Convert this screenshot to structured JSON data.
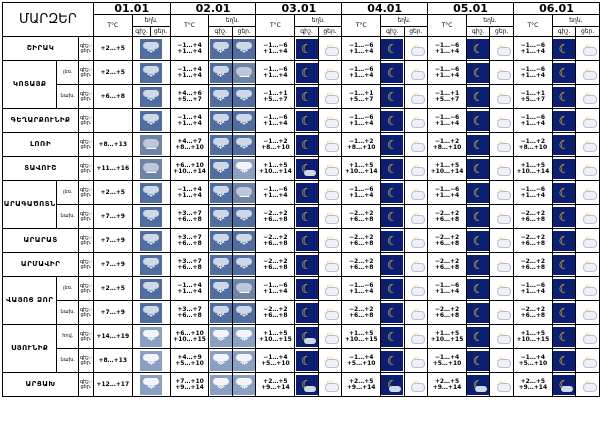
{
  "title": "ՄԱՐԶԵՐ",
  "dates": [
    "01.01",
    "02.01",
    "03.01",
    "04.01",
    "05.01",
    "06.01"
  ],
  "header": {
    "temp_label": "T°C",
    "weather_label": "եղն.",
    "day_label": "ցեր.",
    "night_label": "գիշ."
  },
  "label_dn": "գիշ.-",
  "label_day": "ցեր.",
  "regions": [
    {
      "name": "ՇԻՐԱԿ",
      "sub": "",
      "night": [
        "",
        "−1…+4",
        "−1…−6",
        "−1…−6",
        "−1…−6",
        "−1…−6"
      ],
      "day": [
        "+2…+5",
        "+1…+4",
        "+1…+4",
        "+1…+4",
        "+1…+4",
        "+1…+4"
      ],
      "icons": [
        [
          "snow-cloud"
        ],
        [
          "snow-cloud",
          "snow-cloud"
        ],
        [
          "moon",
          "sun-cloud"
        ],
        [
          "moon",
          "sun-cloud"
        ],
        [
          "moon",
          "sun-cloud"
        ],
        [
          "moon",
          "sun-cloud"
        ]
      ]
    },
    {
      "name": "ԿՈՏԱՅՔ",
      "sub": "լեռ.",
      "night": [
        "",
        "−1…+4",
        "−1…−6",
        "−1…−6",
        "−1…−6",
        "−1…−6"
      ],
      "day": [
        "+2…+5",
        "+1…+4",
        "+1…+4",
        "+1…+4",
        "+1…+4",
        "+1…+4"
      ],
      "icons": [
        [
          "snow-cloud"
        ],
        [
          "snow-cloud",
          "overcast"
        ],
        [
          "moon",
          "sun-cloud"
        ],
        [
          "moon",
          "sun-cloud"
        ],
        [
          "moon",
          "sun-cloud"
        ],
        [
          "moon",
          "sun-cloud"
        ]
      ]
    },
    {
      "name": "",
      "sub": "նախ.",
      "night": [
        "",
        "+4…+6",
        "−1…+1",
        "−1…+1",
        "−1…+1",
        "−1…+1"
      ],
      "day": [
        "+6…+8",
        "+5…+7",
        "+5…+7",
        "+5…+7",
        "+5…+7",
        "+5…+7"
      ],
      "icons": [
        [
          "snow-cloud"
        ],
        [
          "snow-cloud",
          "snow-cloud"
        ],
        [
          "moon",
          "sun-cloud"
        ],
        [
          "moon",
          "sun-cloud"
        ],
        [
          "moon",
          "sun-cloud"
        ],
        [
          "moon",
          "sun-cloud"
        ]
      ]
    },
    {
      "name": "ԳԵՂԱՐՔՈՒՆԻՔ",
      "sub": "",
      "night": [
        "",
        "−1…+4",
        "−1…−6",
        "−1…−6",
        "−1…−6",
        "−1…−6"
      ],
      "day": [
        "",
        "+1…+4",
        "+1…+4",
        "+1…+4",
        "+1…+4",
        "+1…+4"
      ],
      "icons": [
        [
          "snow-cloud"
        ],
        [
          "snow-cloud",
          "snow-cloud"
        ],
        [
          "moon",
          "sun-cloud"
        ],
        [
          "moon",
          "sun-cloud"
        ],
        [
          "moon",
          "sun-cloud"
        ],
        [
          "moon",
          "sun-cloud"
        ]
      ]
    },
    {
      "name": "ԼՈՌԻ",
      "sub": "",
      "night": [
        "",
        "+4…+7",
        "−1…+2",
        "−1…+2",
        "−1…+2",
        "−1…+2"
      ],
      "day": [
        "+8…+13",
        "+8…+10",
        "+8…+10",
        "+8…+10",
        "+8…+10",
        "+8…+10"
      ],
      "icons": [
        [
          "overcast"
        ],
        [
          "snow-cloud",
          "snow-cloud"
        ],
        [
          "moon",
          "sun-cloud"
        ],
        [
          "moon",
          "sun-cloud"
        ],
        [
          "moon",
          "sun-cloud"
        ],
        [
          "moon",
          "sun-cloud"
        ]
      ]
    },
    {
      "name": "ՏԱՎՈՒՇ",
      "sub": "",
      "night": [
        "",
        "+6…+10",
        "+1…+5",
        "+1…+5",
        "+1…+5",
        "+1…+5"
      ],
      "day": [
        "+11…+16",
        "+10…+14",
        "+10…+14",
        "+10…+14",
        "+10…+14",
        "+10…+14"
      ],
      "icons": [
        [
          "overcast"
        ],
        [
          "snow-cloud",
          "snow-light"
        ],
        [
          "night-cloud",
          "sun-cloud"
        ],
        [
          "moon",
          "sun-cloud"
        ],
        [
          "moon",
          "sun-cloud"
        ],
        [
          "moon",
          "sun-cloud"
        ]
      ]
    },
    {
      "name": "ԱՐԱԳԱԾՈՏՆ",
      "sub": "լեռ.",
      "night": [
        "",
        "−1…+4",
        "−1…−6",
        "−1…−6",
        "−1…−6",
        "−1…−6"
      ],
      "day": [
        "+2…+5",
        "+1…+4",
        "+1…+4",
        "+1…+4",
        "+1…+4",
        "+1…+4"
      ],
      "icons": [
        [
          "snow-cloud"
        ],
        [
          "snow-cloud",
          "overcast"
        ],
        [
          "moon",
          "sun-cloud"
        ],
        [
          "moon",
          "sun-cloud"
        ],
        [
          "moon",
          "sun-cloud"
        ],
        [
          "moon",
          "sun-cloud"
        ]
      ]
    },
    {
      "name": "",
      "sub": "նախ.",
      "night": [
        "",
        "+3…+7",
        "−2…+2",
        "−2…+2",
        "−2…+2",
        "−2…+2"
      ],
      "day": [
        "+7…+9",
        "+6…+8",
        "+6…+8",
        "+6…+8",
        "+6…+8",
        "+6…+8"
      ],
      "icons": [
        [
          "snow-cloud"
        ],
        [
          "snow-cloud",
          "snow-cloud"
        ],
        [
          "moon",
          "sun-cloud"
        ],
        [
          "moon",
          "sun-cloud"
        ],
        [
          "moon",
          "sun-cloud"
        ],
        [
          "moon",
          "sun-cloud"
        ]
      ]
    },
    {
      "name": "ԱՐԱՐԱՏ",
      "sub": "",
      "night": [
        "",
        "+3…+7",
        "−2…+2",
        "−2…+2",
        "−2…+2",
        "−2…+2"
      ],
      "day": [
        "+7…+9",
        "+6…+8",
        "+6…+8",
        "+6…+8",
        "+6…+8",
        "+6…+8"
      ],
      "icons": [
        [
          "snow-cloud"
        ],
        [
          "snow-cloud",
          "snow-cloud"
        ],
        [
          "moon",
          "sun-cloud"
        ],
        [
          "moon",
          "sun-cloud"
        ],
        [
          "moon",
          "sun-cloud"
        ],
        [
          "moon",
          "sun-cloud"
        ]
      ]
    },
    {
      "name": "ԱՐՄԱՎԻՐ",
      "sub": "",
      "night": [
        "",
        "+3…+7",
        "−2…+2",
        "−2…+2",
        "−2…+2",
        "−2…+2"
      ],
      "day": [
        "+7…+9",
        "+6…+8",
        "+6…+8",
        "+6…+8",
        "+6…+8",
        "+6…+8"
      ],
      "icons": [
        [
          "snow-cloud"
        ],
        [
          "snow-cloud",
          "snow-cloud"
        ],
        [
          "moon",
          "sun-cloud"
        ],
        [
          "moon",
          "sun-cloud"
        ],
        [
          "moon",
          "sun-cloud"
        ],
        [
          "moon",
          "sun-cloud"
        ]
      ]
    },
    {
      "name": "ՎԱՅՈՑ ՁՈՐ",
      "sub": "լեռ.",
      "night": [
        "",
        "−1…+4",
        "−1…−6",
        "−1…−6",
        "−1…−6",
        "−1…−6"
      ],
      "day": [
        "+2…+5",
        "+1…+4",
        "+1…+4",
        "+1…+4",
        "+1…+4",
        "+1…+4"
      ],
      "icons": [
        [
          "snow-cloud"
        ],
        [
          "snow-cloud",
          "overcast"
        ],
        [
          "moon",
          "sun-cloud"
        ],
        [
          "moon",
          "sun-cloud"
        ],
        [
          "moon",
          "sun-cloud"
        ],
        [
          "moon",
          "sun-cloud"
        ]
      ]
    },
    {
      "name": "",
      "sub": "նախ.",
      "night": [
        "",
        "+3…+7",
        "−2…+2",
        "−2…+2",
        "−2…+2",
        "−2…+2"
      ],
      "day": [
        "+7…+9",
        "+6…+8",
        "+6…+8",
        "+6…+8",
        "+6…+8",
        "+6…+8"
      ],
      "icons": [
        [
          "snow-cloud"
        ],
        [
          "snow-cloud",
          "snow-cloud"
        ],
        [
          "moon",
          "sun-cloud"
        ],
        [
          "moon",
          "sun-cloud"
        ],
        [
          "moon",
          "sun-cloud"
        ],
        [
          "moon",
          "sun-cloud"
        ]
      ]
    },
    {
      "name": "ՍՅՈՒՆԻՔ",
      "sub": "հով.",
      "night": [
        "",
        "+6…+10",
        "+1…+5",
        "+1…+5",
        "+1…+5",
        "+1…+5"
      ],
      "day": [
        "+14…+19",
        "+10…+15",
        "+10…+15",
        "+10…+15",
        "+10…+15",
        "+10…+15"
      ],
      "icons": [
        [
          "snow-light"
        ],
        [
          "snow-light",
          "snow-light"
        ],
        [
          "night-cloud",
          "sun-cloud"
        ],
        [
          "moon",
          "sun-cloud"
        ],
        [
          "moon",
          "sun-cloud"
        ],
        [
          "moon",
          "sun-cloud"
        ]
      ]
    },
    {
      "name": "",
      "sub": "նախ.",
      "night": [
        "",
        "+4…+9",
        "−1…+4",
        "−1…+4",
        "−1…+4",
        "−1…+4"
      ],
      "day": [
        "+8…+13",
        "+5…+10",
        "+5…+10",
        "+5…+10",
        "+5…+10",
        "+5…+10"
      ],
      "icons": [
        [
          "snow-light"
        ],
        [
          "snow-light",
          "snow-light"
        ],
        [
          "moon",
          "sun-cloud"
        ],
        [
          "moon",
          "sun-cloud"
        ],
        [
          "moon",
          "sun-cloud"
        ],
        [
          "moon",
          "sun-cloud"
        ]
      ]
    },
    {
      "name": "ԱՐՑԱԽ",
      "sub": "",
      "night": [
        "",
        "+7…+10",
        "+2…+5",
        "+2…+5",
        "+2…+5",
        "+2…+5"
      ],
      "day": [
        "+12…+17",
        "+9…+14",
        "+9…+14",
        "+9…+14",
        "+9…+14",
        "+9…+14"
      ],
      "icons": [
        [
          "snow-light"
        ],
        [
          "snow-light",
          "snow-light"
        ],
        [
          "night-cloud",
          "sun-cloud"
        ],
        [
          "night-cloud",
          "sun-cloud"
        ],
        [
          "night-cloud",
          "sun-cloud"
        ],
        [
          "night-cloud",
          "sun-cloud"
        ]
      ]
    }
  ]
}
